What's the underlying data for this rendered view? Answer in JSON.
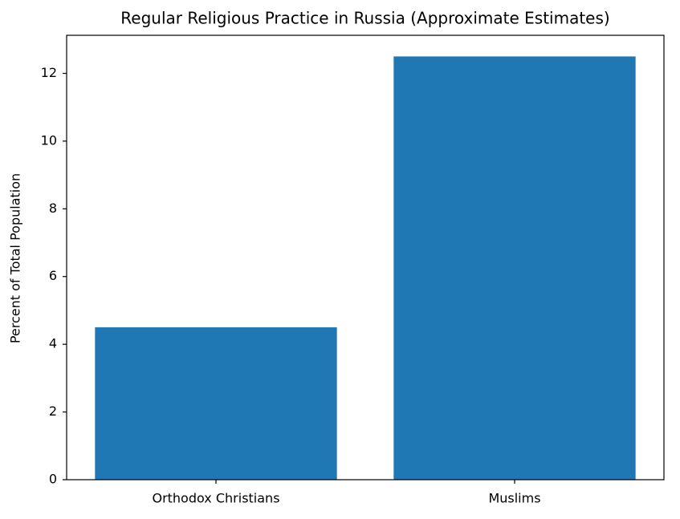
{
  "chart_data": {
    "type": "bar",
    "title": "Regular Religious Practice in Russia (Approximate Estimates)",
    "y_label": "Percent of Total Population",
    "categories": [
      "Orthodox Christians",
      "Muslims"
    ],
    "values": [
      4.5,
      12.5
    ],
    "color": "#1f77b4",
    "ylim": [
      0,
      13.125
    ],
    "yticks": [
      0,
      2,
      4,
      6,
      8,
      10,
      12
    ],
    "grid": false
  }
}
